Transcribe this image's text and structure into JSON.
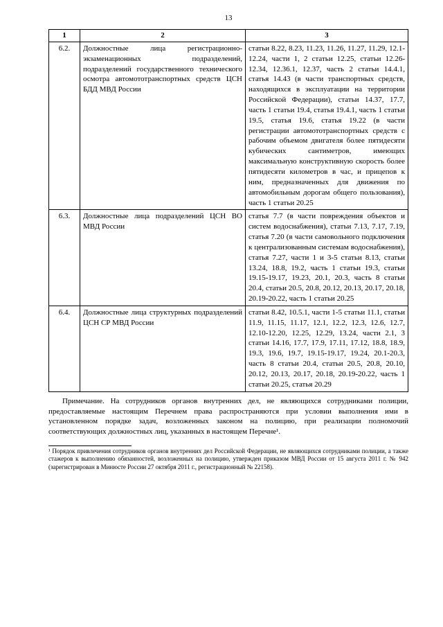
{
  "page_number": "13",
  "header": {
    "c1": "1",
    "c2": "2",
    "c3": "3"
  },
  "rows": [
    {
      "num": "6.2.",
      "desc": "Должностные лица регистрационно-экзаменационных подразделений, подразделений государственного технического осмотра автомототранспортных средств ЦСН БДД МВД России",
      "art": "статьи 8.22, 8.23, 11.23, 11.26, 11.27, 11.29, 12.1-12.24, части 1, 2 статьи 12.25, статьи 12.26-12.34, 12.36.1, 12.37, часть 2 статьи 14.4.1, статья 14.43 (в части транспортных средств, находящихся в эксплуатации на территории Российской Федерации), статьи 14.37, 17.7, часть 1 статьи 19.4, статья 19.4.1, часть 1 статьи 19.5, статья 19.6, статья 19.22 (в части регистрации автомототранспортных средств с рабочим объемом двигателя более пятидесяти кубических сантиметров, имеющих максимальную конструктивную скорость более пятидесяти километров в час, и прицепов к ним, предназначенных для движения по автомобильным дорогам общего пользования), часть 1 статьи 20.25"
    },
    {
      "num": "6.3.",
      "desc": "Должностные лица подразделений ЦСН ВО МВД России",
      "art": "статья 7.7 (в части повреждения объектов и систем водоснабжения), статьи 7.13, 7.17, 7.19, статья 7.20 (в части самовольного подключения к централизованным системам водоснабжения), статья 7.27, части 1 и 3-5 статьи 8.13, статьи 13.24, 18.8, 19.2, часть 1 статьи 19.3, статьи 19.15-19.17, 19.23, 20.1, 20.3, часть 8 статьи 20.4, статьи 20.5, 20.8, 20.12, 20.13, 20.17, 20.18, 20.19-20.22, часть 1 статьи 20.25"
    },
    {
      "num": "6.4.",
      "desc": "Должностные лица структурных подразделений ЦСН СР МВД России",
      "art": "статьи 8.42, 10.5.1, части 1-5 статьи 11.1, статьи 11.9, 11.15, 11.17, 12.1, 12.2, 12.3, 12.6, 12.7, 12.10-12.20, 12.25, 12.29, 13.24, части 2.1, 3 статьи 14.16, 17.7, 17.9, 17.11, 17.12, 18.8, 18.9, 19.3, 19.6, 19.7, 19.15-19.17, 19.24, 20.1-20.3, часть 8 статьи 20.4, статьи 20.5, 20.8, 20.10, 20.12, 20.13, 20.17, 20.18, 20.19-20.22, часть 1 статьи 20.25, статья 20.29"
    }
  ],
  "note": "Примечание. На сотрудников органов внутренних дел, не являющихся сотрудниками полиции, предоставляемые настоящим Перечнем права распространяются при условии выполнения ими в установленном порядке задач, возложенных законом на полицию, при реализации полномочий соответствующих должностных лиц, указанных в настоящем Перечне¹.",
  "footnote": "¹ Порядок привлечения сотрудников органов внутренних дел Российской Федерации, не являющихся сотрудниками полиции, а также стажеров к выполнению обязанностей, возложенных на полицию, утвержден приказом МВД России от 15 августа 2011 г. № 942 (зарегистрирован в Минюсте России 27 октября 2011 г., регистрационный № 22158)."
}
